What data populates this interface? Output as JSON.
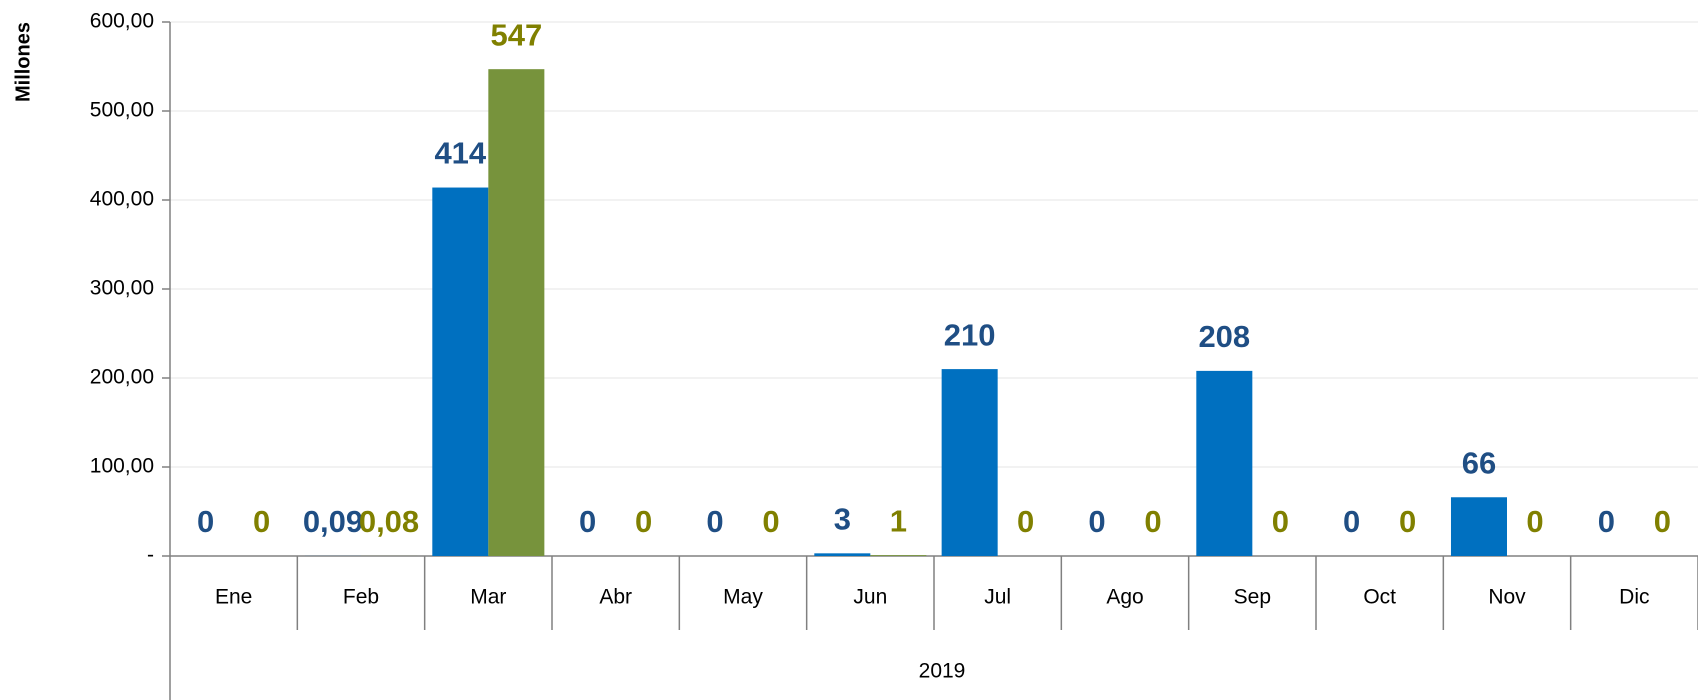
{
  "chart_data": {
    "type": "bar",
    "y_label": "Millones",
    "group_label": "2019",
    "categories": [
      "Ene",
      "Feb",
      "Mar",
      "Abr",
      "May",
      "Jun",
      "Jul",
      "Ago",
      "Sep",
      "Oct",
      "Nov",
      "Dic"
    ],
    "series": [
      {
        "color": "#0070c0",
        "label_color": "#1f4e84",
        "values": [
          0,
          0.09,
          414,
          0,
          0,
          3,
          210,
          0,
          208,
          0,
          66,
          0
        ],
        "value_labels": [
          "0",
          "0,09",
          "414",
          "0",
          "0",
          "3",
          "210",
          "0",
          "208",
          "0",
          "66",
          "0"
        ]
      },
      {
        "color": "#77933c",
        "label_color": "#808000",
        "values": [
          0,
          0.08,
          547,
          0,
          0,
          1,
          0,
          0,
          0,
          0,
          0,
          0
        ],
        "value_labels": [
          "0",
          "0,08",
          "547",
          "0",
          "0",
          "1",
          "0",
          "0",
          "0",
          "0",
          "0",
          "0"
        ]
      }
    ],
    "ylim": [
      0,
      600
    ],
    "yticks": [
      {
        "value": 0,
        "label": "-"
      },
      {
        "value": 100,
        "label": "100,00"
      },
      {
        "value": 200,
        "label": "200,00"
      },
      {
        "value": 300,
        "label": "300,00"
      },
      {
        "value": 400,
        "label": "400,00"
      },
      {
        "value": 500,
        "label": "500,00"
      },
      {
        "value": 600,
        "label": "600,00"
      }
    ],
    "grid": true
  }
}
